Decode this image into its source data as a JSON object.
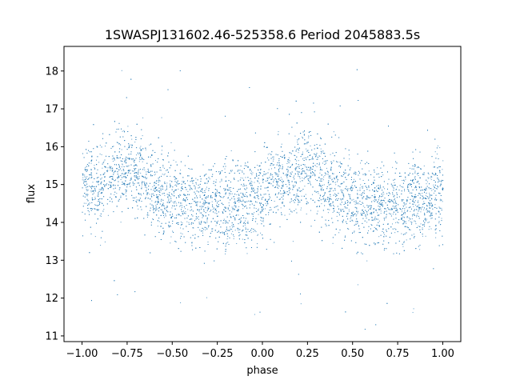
{
  "chart_data": {
    "type": "scatter",
    "title": "1SWASPJ131602.46-525358.6 Period 2045883.5s",
    "xlabel": "phase",
    "ylabel": "flux",
    "xlim": [
      -1.1,
      1.1
    ],
    "ylim": [
      10.85,
      18.65
    ],
    "x_ticks": [
      -1.0,
      -0.75,
      -0.5,
      -0.25,
      0.0,
      0.25,
      0.5,
      0.75,
      1.0
    ],
    "x_tick_labels": [
      "−1.00",
      "−0.75",
      "−0.50",
      "−0.25",
      "0.00",
      "0.25",
      "0.50",
      "0.75",
      "1.00"
    ],
    "y_ticks": [
      11,
      12,
      13,
      14,
      15,
      16,
      17,
      18
    ],
    "y_tick_labels": [
      "11",
      "12",
      "13",
      "14",
      "15",
      "16",
      "17",
      "18"
    ],
    "grid": false,
    "legend": "none",
    "marker_color": "#1f77b4",
    "x_range": [
      -1.0,
      1.0
    ],
    "trend": {
      "phase": [
        -1.0,
        -0.9,
        -0.8,
        -0.75,
        -0.7,
        -0.6,
        -0.5,
        -0.4,
        -0.3,
        -0.2,
        -0.1,
        0.0,
        0.05,
        0.1,
        0.2,
        0.25,
        0.3,
        0.4,
        0.5,
        0.6,
        0.7,
        0.8,
        0.9,
        1.0
      ],
      "flux": [
        14.9,
        15.0,
        15.4,
        15.5,
        15.3,
        14.9,
        14.6,
        14.5,
        14.4,
        14.4,
        14.5,
        14.7,
        15.0,
        15.0,
        15.3,
        15.5,
        15.3,
        14.9,
        14.6,
        14.5,
        14.4,
        14.5,
        14.6,
        14.8
      ]
    },
    "scatter_sd": 0.55,
    "flux_range": [
      11.1,
      18.55
    ]
  }
}
